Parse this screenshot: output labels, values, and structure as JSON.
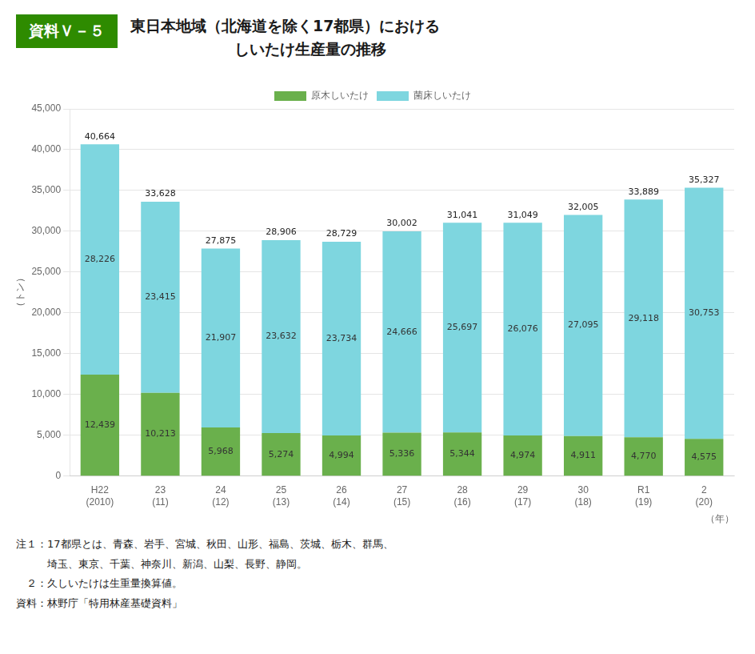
{
  "chart_data": {
    "type": "bar",
    "stacked": true,
    "badge": "資料Ｖ－５",
    "title": [
      "東日本地域（北海道を除く17都県）における",
      "しいたけ生産量の推移"
    ],
    "ylabel": "（トン）",
    "xlabel": "（年）",
    "categories": [
      "H22\n(2010)",
      "23\n(11)",
      "24\n(12)",
      "25\n(13)",
      "26\n(14)",
      "27\n(15)",
      "28\n(16)",
      "29\n(17)",
      "30\n(18)",
      "R1\n(19)",
      "2\n(20)"
    ],
    "series": [
      {
        "name": "原木しいたけ",
        "color": "#6ab04c",
        "values": [
          12439,
          10213,
          5968,
          5274,
          4994,
          5336,
          5344,
          4974,
          4911,
          4770,
          4575
        ],
        "value_labels": [
          "12,439",
          "10,213",
          "5,968",
          "5,274",
          "4,994",
          "5,336",
          "5,344",
          "4,974",
          "4,911",
          "4,770",
          "4,575"
        ]
      },
      {
        "name": "菌床しいたけ",
        "color": "#7ed6df",
        "values": [
          28226,
          23415,
          21907,
          23632,
          23734,
          24666,
          25697,
          26076,
          27095,
          29118,
          30753
        ],
        "value_labels": [
          "28,226",
          "23,415",
          "21,907",
          "23,632",
          "23,734",
          "24,666",
          "25,697",
          "26,076",
          "27,095",
          "29,118",
          "30,753"
        ]
      }
    ],
    "totals": {
      "values": [
        40664,
        33628,
        27875,
        28906,
        28729,
        30002,
        31041,
        31049,
        32005,
        33889,
        35327
      ],
      "value_labels": [
        "40,664",
        "33,628",
        "27,875",
        "28,906",
        "28,729",
        "30,002",
        "31,041",
        "31,049",
        "32,005",
        "33,889",
        "35,327"
      ]
    },
    "ylim": [
      0,
      45000
    ],
    "yticks": [
      0,
      {
        "value": 5000,
        "label": "5,000"
      },
      {
        "value": 10000,
        "label": "10,000"
      },
      {
        "value": 15000,
        "label": "15,000"
      },
      {
        "value": 20000,
        "label": "20,000"
      },
      {
        "value": 25000,
        "label": "25,000"
      },
      {
        "value": 30000,
        "label": "30,000"
      },
      {
        "value": 35000,
        "label": "35,000"
      },
      {
        "value": 40000,
        "label": "40,000"
      },
      {
        "value": 45000,
        "label": "45,000"
      }
    ],
    "grid": true,
    "legend": "top",
    "data_labels": true,
    "notes": [
      "注１：17都県とは、青森、岩手、宮城、秋田、山形、福島、茨城、栃木、群馬、",
      "　　　埼玉、東京、千葉、神奈川、新潟、山梨、長野、静岡。",
      "　２：久しいたけは生重量換算値。",
      "資料：林野庁「特用林産基礎資料」"
    ]
  }
}
